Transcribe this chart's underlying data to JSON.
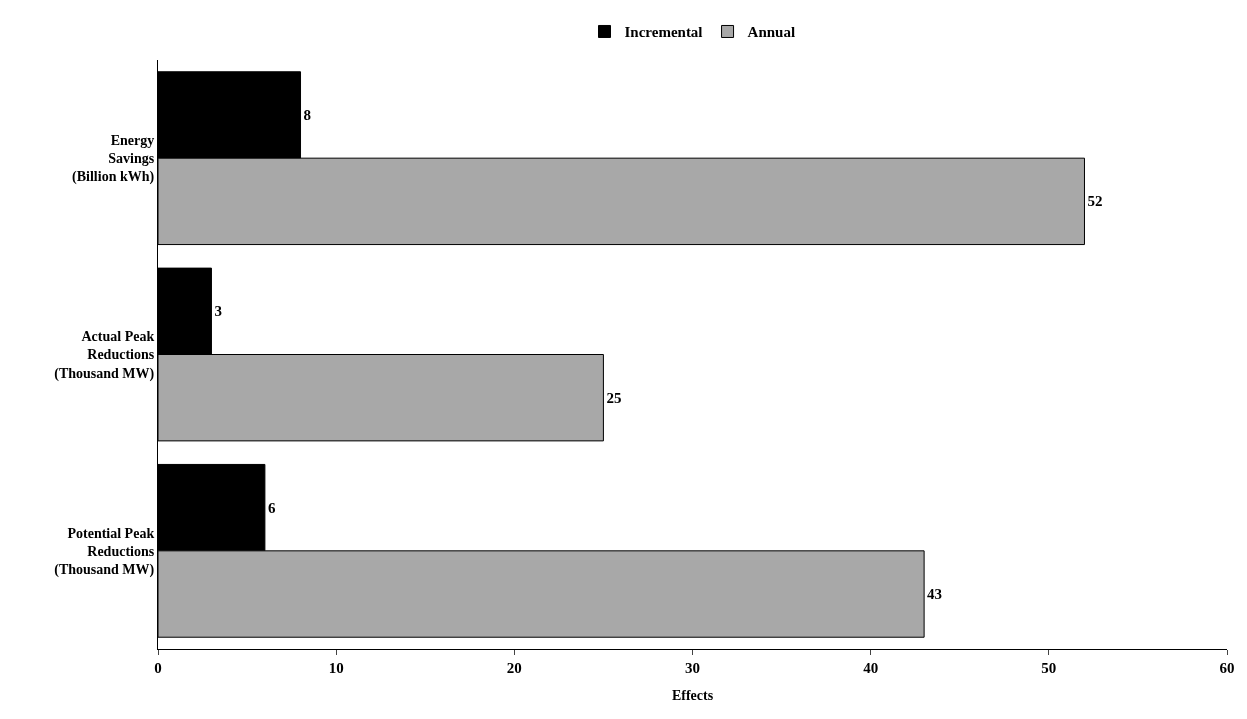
{
  "chart_data": {
    "type": "bar",
    "orientation": "horizontal",
    "xlabel": "Effects",
    "categories": [
      "Energy\nSavings\n(Billion kWh)",
      "Actual Peak\nReductions\n(Thousand MW)",
      "Potential Peak\nReductions\n(Thousand MW)"
    ],
    "series": [
      {
        "name": "Incremental",
        "color": "#000000",
        "values": [
          8,
          3,
          6
        ]
      },
      {
        "name": "Annual",
        "color": "#a8a8a8",
        "values": [
          52,
          25,
          43
        ]
      }
    ],
    "xlim": [
      0,
      60
    ],
    "xticks": [
      0,
      10,
      20,
      30,
      40,
      50,
      60
    ],
    "data_labels": true,
    "legend": "top"
  }
}
